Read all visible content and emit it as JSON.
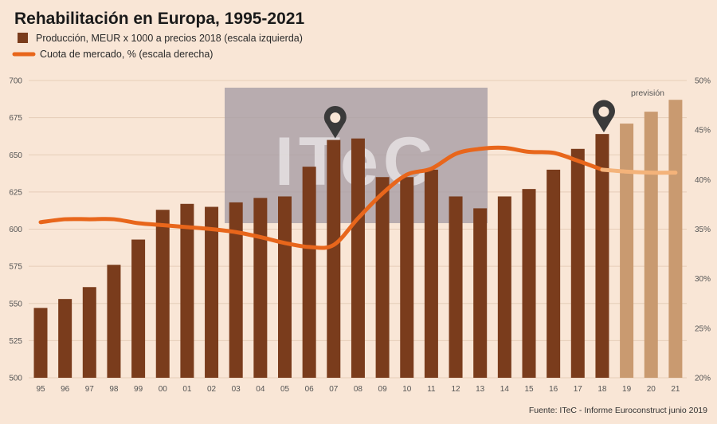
{
  "chart_data": {
    "type": "bar",
    "title": "Rehabilitación en Europa, 1995-2021",
    "legend": {
      "bars_label": "Producción, MEUR x 1000 a precios 2018 (escala izquierda)",
      "line_label": "Cuota de mercado, % (escala derecha)"
    },
    "categories": [
      "95",
      "96",
      "97",
      "98",
      "99",
      "00",
      "01",
      "02",
      "03",
      "04",
      "05",
      "06",
      "07",
      "08",
      "09",
      "10",
      "11",
      "12",
      "13",
      "14",
      "15",
      "16",
      "17",
      "18",
      "19",
      "20",
      "21"
    ],
    "series": [
      {
        "name": "Producción, MEUR x 1000 a precios 2018 (escala izquierda)",
        "type": "bar",
        "axis": "left",
        "values": [
          547,
          553,
          561,
          576,
          593,
          613,
          617,
          615,
          618,
          621,
          622,
          642,
          660,
          661,
          635,
          635,
          640,
          622,
          614,
          622,
          627,
          640,
          654,
          664,
          671,
          679,
          687
        ],
        "forecast_from_index": 24
      },
      {
        "name": "Cuota de mercado, % (escala derecha)",
        "type": "line",
        "axis": "right",
        "values": [
          35.7,
          36.0,
          36.0,
          36.0,
          35.6,
          35.4,
          35.2,
          35.0,
          34.7,
          34.2,
          33.6,
          33.2,
          33.4,
          36.1,
          38.6,
          40.5,
          41.1,
          42.6,
          43.1,
          43.2,
          42.8,
          42.7,
          41.9,
          41.0,
          40.8,
          40.7,
          40.7
        ],
        "forecast_from_index": 23
      }
    ],
    "y_left": {
      "min": 500,
      "max": 700,
      "ticks": [
        "500",
        "525",
        "550",
        "575",
        "600",
        "625",
        "650",
        "675",
        "700"
      ]
    },
    "y_right": {
      "min": 20,
      "max": 50,
      "ticks": [
        "20%",
        "25%",
        "30%",
        "35%",
        "40%",
        "45%",
        "50%"
      ]
    },
    "markers_at": [
      "07",
      "18"
    ],
    "forecast_label": "previsión",
    "watermark": "ITeC",
    "source": "Fuente: ITeC - Informe Euroconstruct junio 2019",
    "colors": {
      "bar": "#7a3c1c",
      "bar_forecast": "#c99a70",
      "line": "#e8661b",
      "line_forecast": "#f4b37a",
      "grid": "#e6cdb8",
      "marker": "#3a3a3a",
      "watermark_bg": "#a89ea5"
    }
  }
}
